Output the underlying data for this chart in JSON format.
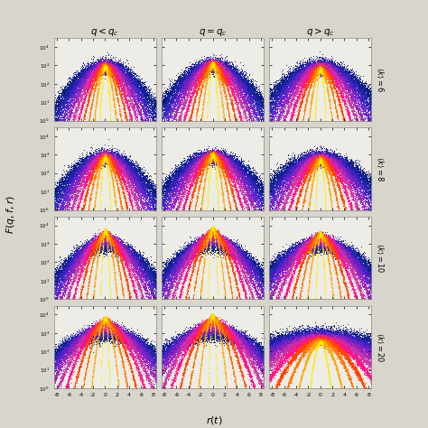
{
  "col_labels": [
    "$q < q_c$",
    "$q = q_c$",
    "$q > q_c$"
  ],
  "row_labels": [
    "$\\langle k\\rangle = 6$",
    "$\\langle k\\rangle = 8$",
    "$\\langle k\\rangle = 10$",
    "$\\langle k\\rangle = 20$"
  ],
  "xlabel": "$r(t)$",
  "ylabel": "$F(q, f, r)$",
  "xlim": [
    -8.5,
    8.5
  ],
  "ylim_log": [
    1.0,
    30000.0
  ],
  "colors": [
    "#FFEE00",
    "#FFAA00",
    "#FF7700",
    "#FF4400",
    "#FF1188",
    "#CC33AA",
    "#9922BB",
    "#6622CC",
    "#3322BB",
    "#112299",
    "#001177"
  ],
  "n_series": 11,
  "background_color": "#eeece6",
  "fig_bg": "#d8d5cc"
}
